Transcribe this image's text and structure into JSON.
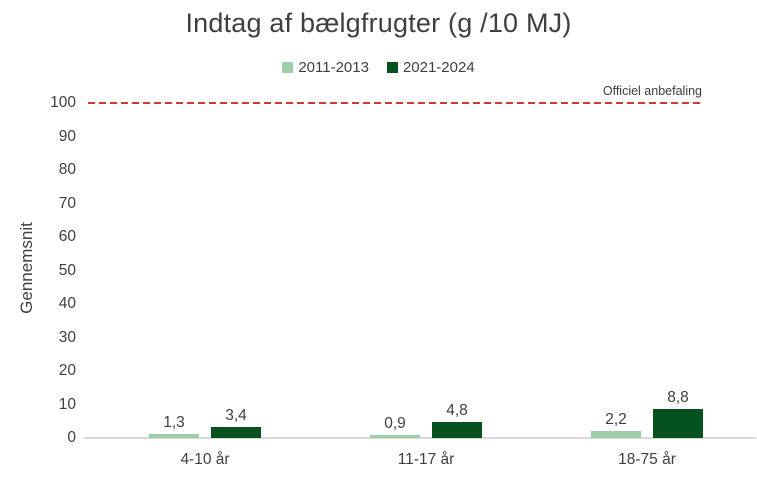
{
  "chart_data": {
    "type": "bar",
    "title": "Indtag af bælgfrugter (g /10 MJ)",
    "ylabel": "Gennemsnit",
    "xlabel": "",
    "categories": [
      "4-10 år",
      "11-17 år",
      "18-75 år"
    ],
    "series": [
      {
        "name": "2011-2013",
        "color": "#9DCEA8",
        "values": [
          1.3,
          0.9,
          2.2
        ],
        "value_labels": [
          "1,3",
          "0,9",
          "2,2"
        ]
      },
      {
        "name": "2021-2024",
        "color": "#05521E",
        "values": [
          3.4,
          4.8,
          8.8
        ],
        "value_labels": [
          "3,4",
          "4,8",
          "8,8"
        ]
      }
    ],
    "ylim": [
      0,
      100
    ],
    "yticks": [
      0,
      10,
      20,
      30,
      40,
      50,
      60,
      70,
      80,
      90,
      100
    ],
    "grid": false,
    "legend_position": "top",
    "annotation": {
      "text": "Officiel anbefaling",
      "value": 100,
      "color": "#CE3A32",
      "style": "dashed"
    },
    "colors": {
      "background": "#FFFFFF",
      "text": "#404040",
      "axis_line": "#D9D9D9"
    }
  }
}
